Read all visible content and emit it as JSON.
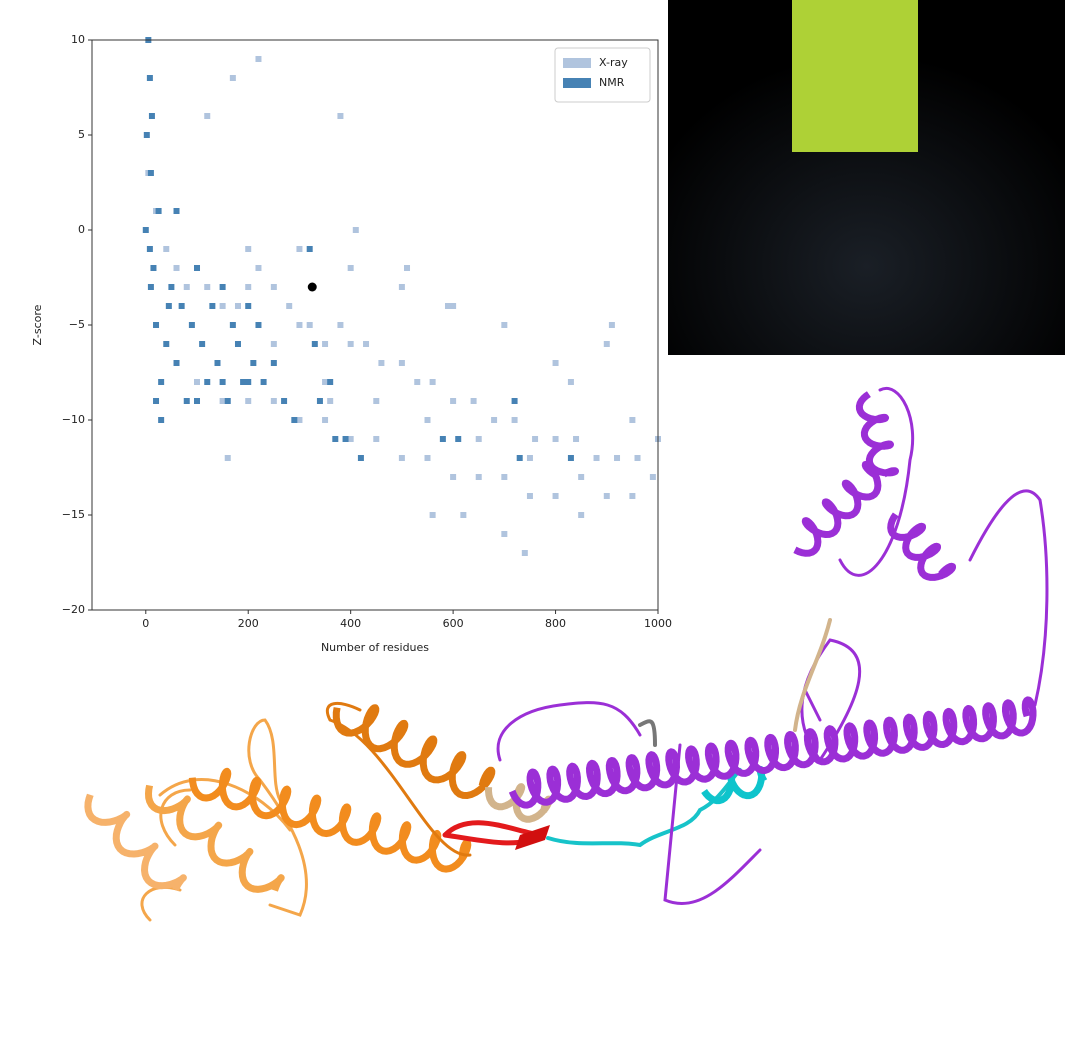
{
  "chart_data": {
    "type": "scatter",
    "xlabel": "Number of residues",
    "ylabel": "Z-score",
    "xlim": [
      -105,
      1000
    ],
    "ylim": [
      -20,
      10
    ],
    "xticks": [
      0,
      200,
      400,
      600,
      800,
      1000
    ],
    "yticks": [
      {
        "value": -20,
        "label": "−20"
      },
      {
        "value": -15,
        "label": "−15"
      },
      {
        "value": -10,
        "label": "−10"
      },
      {
        "value": -5,
        "label": "−5"
      },
      0,
      5,
      10
    ],
    "legend": "upper right",
    "series": [
      {
        "name": "X-ray",
        "color": "#b0c4de",
        "x": [
          5,
          20,
          40,
          60,
          80,
          100,
          120,
          150,
          180,
          200,
          220,
          250,
          280,
          300,
          320,
          350,
          380,
          400,
          430,
          460,
          500,
          530,
          560,
          600,
          640,
          680,
          720,
          760,
          800,
          840,
          880,
          920,
          960,
          1000,
          250,
          300,
          350,
          400,
          450,
          500,
          550,
          600,
          650,
          700,
          750,
          800,
          850,
          900,
          950,
          990,
          200,
          300,
          400,
          500,
          600,
          700,
          800,
          900,
          160,
          360,
          560,
          910,
          120,
          410,
          510,
          620,
          700,
          220,
          100,
          150,
          200,
          250,
          350,
          450,
          550,
          650,
          750,
          850,
          950,
          170,
          380,
          590,
          830,
          740
        ],
        "y": [
          3,
          1,
          -1,
          -2,
          -3,
          -2,
          -3,
          -4,
          -4,
          -3,
          -2,
          -3,
          -4,
          -5,
          -5,
          -6,
          -5,
          -6,
          -6,
          -7,
          -7,
          -8,
          -8,
          -9,
          -9,
          -10,
          -10,
          -11,
          -11,
          -11,
          -12,
          -12,
          -12,
          -11,
          -9,
          -10,
          -10,
          -11,
          -11,
          -12,
          -12,
          -13,
          -13,
          -13,
          -14,
          -14,
          -15,
          -14,
          -14,
          -13,
          -1,
          -1,
          -2,
          -3,
          -4,
          -5,
          -7,
          -6,
          -12,
          -9,
          -15,
          -5,
          6,
          0,
          -2,
          -15,
          -16,
          9,
          -8,
          -9,
          -9,
          -6,
          -8,
          -9,
          -10,
          -11,
          -12,
          -13,
          -10,
          8,
          6,
          -4,
          -8,
          -17
        ]
      },
      {
        "name": "NMR",
        "color": "#4682b4",
        "x": [
          0,
          2,
          5,
          8,
          10,
          15,
          20,
          30,
          40,
          50,
          60,
          70,
          80,
          90,
          100,
          110,
          120,
          130,
          140,
          150,
          160,
          170,
          180,
          190,
          200,
          210,
          220,
          230,
          250,
          270,
          290,
          320,
          330,
          340,
          360,
          370,
          390,
          420,
          580,
          610,
          720,
          730,
          830,
          30,
          10,
          25,
          60,
          100,
          150,
          200,
          12,
          20,
          8,
          45
        ],
        "y": [
          0,
          5,
          10,
          8,
          3,
          -2,
          -5,
          -8,
          -6,
          -3,
          -7,
          -4,
          -9,
          -5,
          -2,
          -6,
          -8,
          -4,
          -7,
          -3,
          -9,
          -5,
          -6,
          -8,
          -4,
          -7,
          -5,
          -8,
          -7,
          -9,
          -10,
          -1,
          -6,
          -9,
          -8,
          -11,
          -11,
          -12,
          -11,
          -11,
          -9,
          -12,
          -12,
          -10,
          -3,
          1,
          1,
          -9,
          -8,
          -8,
          6,
          -9,
          -1,
          -4
        ]
      }
    ],
    "highlight": {
      "x": 325,
      "y": -3,
      "color": "#000000"
    }
  }
}
